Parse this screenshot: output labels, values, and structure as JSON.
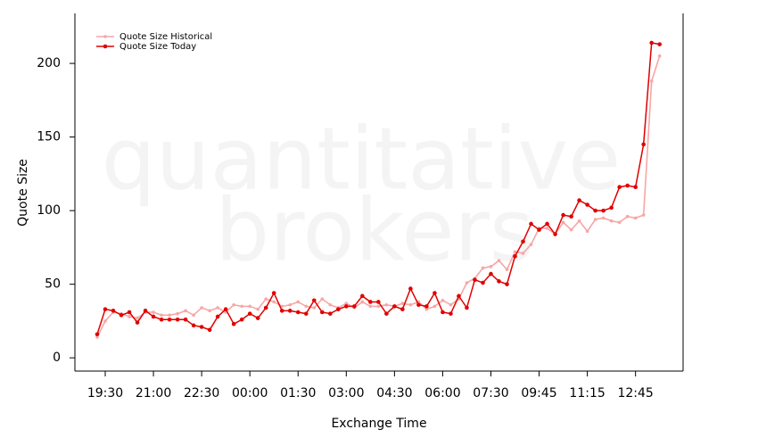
{
  "chart_data": {
    "type": "line",
    "xlabel": "Exchange Time",
    "ylabel": "Quote Size",
    "watermark": [
      "quantitative",
      "brokers"
    ],
    "categories": [
      null,
      "19:30",
      null,
      null,
      null,
      null,
      null,
      "21:00",
      null,
      null,
      null,
      null,
      null,
      "22:30",
      null,
      null,
      null,
      null,
      null,
      "00:00",
      null,
      null,
      null,
      null,
      null,
      "01:30",
      null,
      null,
      null,
      null,
      null,
      "03:00",
      null,
      null,
      null,
      null,
      null,
      "04:30",
      null,
      null,
      null,
      null,
      null,
      "06:00",
      null,
      null,
      null,
      null,
      null,
      "07:30",
      null,
      null,
      null,
      null,
      null,
      "09:45",
      null,
      null,
      null,
      null,
      null,
      "11:15",
      null,
      null,
      null,
      null,
      null,
      "12:45",
      null,
      null,
      null
    ],
    "series": [
      {
        "name": "Quote Size Historical",
        "color": "#f7a6a6",
        "values": [
          14,
          25,
          31,
          30,
          28,
          27,
          31,
          31,
          29,
          29,
          30,
          32,
          29,
          34,
          32,
          34,
          31,
          36,
          35,
          35,
          33,
          40,
          38,
          35,
          36,
          38,
          35,
          34,
          40,
          36,
          34,
          37,
          34,
          38,
          35,
          35,
          36,
          35,
          37,
          36,
          38,
          33,
          35,
          39,
          36,
          40,
          51,
          54,
          61,
          62,
          66,
          60,
          72,
          71,
          77,
          88,
          88,
          84,
          92,
          87,
          93,
          86,
          94,
          95,
          93,
          92,
          96,
          95,
          97,
          188,
          205
        ]
      },
      {
        "name": "Quote Size Today",
        "color": "#e00000",
        "values": [
          16,
          33,
          32,
          29,
          31,
          24,
          32,
          28,
          26,
          26,
          26,
          26,
          22,
          21,
          19,
          28,
          33,
          23,
          26,
          30,
          27,
          34,
          44,
          32,
          32,
          31,
          30,
          39,
          31,
          30,
          33,
          35,
          35,
          42,
          38,
          38,
          30,
          35,
          33,
          47,
          36,
          35,
          44,
          31,
          30,
          42,
          34,
          53,
          51,
          57,
          52,
          50,
          69,
          79,
          91,
          87,
          91,
          84,
          97,
          96,
          107,
          104,
          100,
          100,
          102,
          116,
          117,
          116,
          145,
          214,
          213
        ]
      }
    ],
    "ylim": [
      -9,
      234
    ],
    "yticks": [
      0,
      50,
      100,
      150,
      200
    ],
    "grid": false,
    "legend": "top-left"
  }
}
